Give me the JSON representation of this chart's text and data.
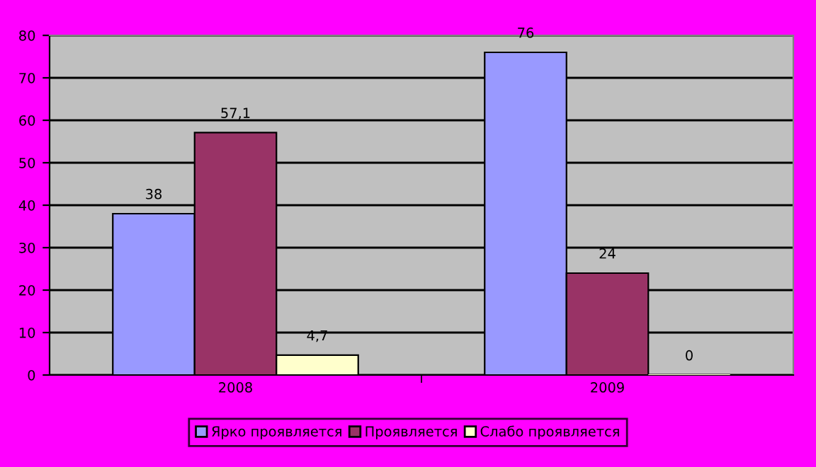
{
  "chart_data": {
    "type": "bar",
    "categories": [
      "2008",
      "2009"
    ],
    "series": [
      {
        "name": "Ярко проявляется",
        "color": "#9999ff",
        "values": [
          38,
          76
        ],
        "value_labels": [
          "38",
          "76"
        ]
      },
      {
        "name": "Проявляется",
        "color": "#993366",
        "values": [
          57.1,
          24
        ],
        "value_labels": [
          "57,1",
          "24"
        ]
      },
      {
        "name": "Слабо проявляется",
        "color": "#ffffcc",
        "values": [
          4.7,
          0
        ],
        "value_labels": [
          "4,7",
          "0"
        ]
      }
    ],
    "ylim": [
      0,
      80
    ],
    "yticks": [
      0,
      10,
      20,
      30,
      40,
      50,
      60,
      70,
      80
    ],
    "grid": "y",
    "legend": "bottom"
  }
}
